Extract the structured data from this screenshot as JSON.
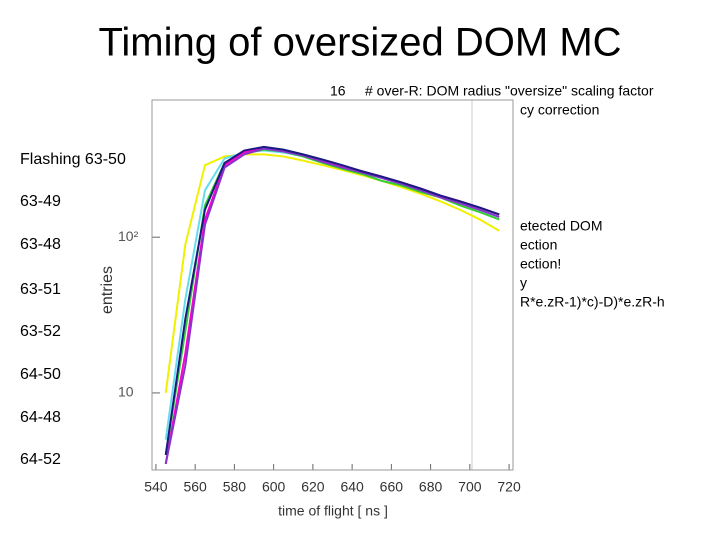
{
  "header": {
    "title": "Timing of oversized DOM MC"
  },
  "notes": {
    "number": "16",
    "lines": [
      "# over-R: DOM radius \"oversize\" scaling factor",
      "cy correction",
      "etected DOM",
      "ection",
      "ection!",
      "y",
      "R*e.zR-1)*c)-D)*e.zR-h"
    ]
  },
  "labels": [
    "Flashing 63-50",
    "63-49",
    "63-48",
    "63-51",
    "63-52",
    "64-50",
    "64-48",
    "64-52"
  ],
  "chart_data": {
    "type": "line",
    "x_label": "time of flight [ ns ]",
    "y_label": "entries",
    "x": [
      545,
      555,
      565,
      575,
      585,
      595,
      605,
      615,
      625,
      635,
      645,
      655,
      665,
      675,
      685,
      695,
      705,
      715
    ],
    "series": [
      {
        "color": "#f0f000",
        "values": [
          10,
          90,
          290,
          330,
          340,
          340,
          330,
          310,
          290,
          270,
          250,
          230,
          210,
          190,
          170,
          150,
          130,
          110
        ]
      },
      {
        "color": "#66ddee",
        "values": [
          5,
          40,
          200,
          320,
          350,
          360,
          350,
          330,
          300,
          280,
          260,
          240,
          220,
          200,
          180,
          165,
          150,
          135
        ]
      },
      {
        "color": "#33cc33",
        "values": [
          4,
          25,
          160,
          300,
          345,
          365,
          355,
          330,
          300,
          275,
          255,
          230,
          215,
          195,
          180,
          160,
          145,
          130
        ]
      },
      {
        "color": "#ff00cc",
        "values": [
          3.5,
          18,
          130,
          290,
          350,
          375,
          360,
          335,
          310,
          285,
          265,
          245,
          225,
          205,
          185,
          170,
          155,
          140
        ]
      },
      {
        "color": "#8833cc",
        "values": [
          3.5,
          15,
          120,
          280,
          340,
          370,
          355,
          335,
          305,
          280,
          260,
          240,
          220,
          200,
          180,
          165,
          150,
          135
        ]
      },
      {
        "color": "#1a1a80",
        "values": [
          4,
          30,
          150,
          300,
          360,
          380,
          365,
          340,
          315,
          290,
          265,
          245,
          225,
          205,
          185,
          170,
          155,
          140
        ]
      }
    ],
    "xlim": [
      538,
      722
    ],
    "ylim": [
      3.2,
      760
    ],
    "log_y": true,
    "xticks": [
      540,
      560,
      580,
      600,
      620,
      640,
      660,
      680,
      700,
      720
    ],
    "yticks": [
      {
        "value": 10,
        "label": "10"
      },
      {
        "value": 100,
        "label": "10²"
      }
    ]
  }
}
